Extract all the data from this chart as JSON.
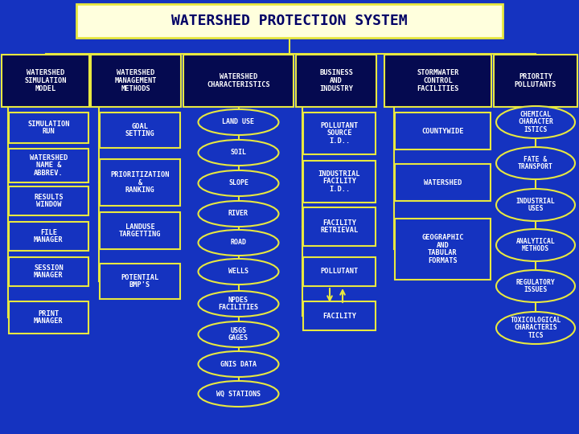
{
  "title": "WATERSHED PROTECTION SYSTEM",
  "bg_color": "#1533c0",
  "title_bg": "#ffffdd",
  "title_text_color": "#000066",
  "box_bg_dark": "#050a50",
  "box_bg_mid": "#1533c0",
  "box_border": "#e8e840",
  "ellipse_border": "#e8e840",
  "ellipse_bg": "#1533c0",
  "hdr_texts": [
    "WATERSHED\nSIMULATION\nMODEL",
    "WATERSHED\nMANAGEMENT\nMETHODS",
    "WATERSHED\nCHARACTERISTICS",
    "BUSINESS\nAND\nINDUSTRY",
    "STORMWATER\nCONTROL\nFACILITIES",
    "PRIORITY\nPOLLUTANTS"
  ],
  "col1_items": [
    "SIMULATION\nRUN",
    "WATERSHED\nNAME &\nABBREV.",
    "RESULTS\nWINDOW",
    "FILE\nMANAGER",
    "SESSION\nMANAGER",
    "PRINT\nMANAGER"
  ],
  "col2_items": [
    "GOAL\nSETTING",
    "PRIORITIZATION\n&\nRANKING",
    "LANDUSE\nTARGETTING",
    "POTENTIAL\nBMP'S"
  ],
  "col3_items": [
    "LAND USE",
    "SOIL",
    "SLOPE",
    "RIVER",
    "ROAD",
    "WELLS",
    "NPDES\nFACILITIES",
    "USGS\nGAGES",
    "GNIS DATA",
    "WQ STATIONS"
  ],
  "col4_items": [
    "POLLUTANT\nSOURCE\nI.D..",
    "INDUSTRIAL\nFACILITY\nI.D..",
    "FACILITY\nRETRIEVAL",
    "POLLUTANT",
    "FACILITY"
  ],
  "col5_items": [
    "COUNTYWIDE",
    "WATERSHED",
    "GEOGRAPHIC\nAND\nTABULAR\nFORMATS"
  ],
  "col6_items": [
    "CHEMICAL\nCHARACTER\nISTICS",
    "FATE &\nTRANSPORT",
    "INDUSTRIAL\nUSES",
    "ANALYTICAL\nMETHODS",
    "REGULATORY\nISSUES",
    "TOXICOLOGICAL\nCHARACTERIS\nTICS"
  ]
}
